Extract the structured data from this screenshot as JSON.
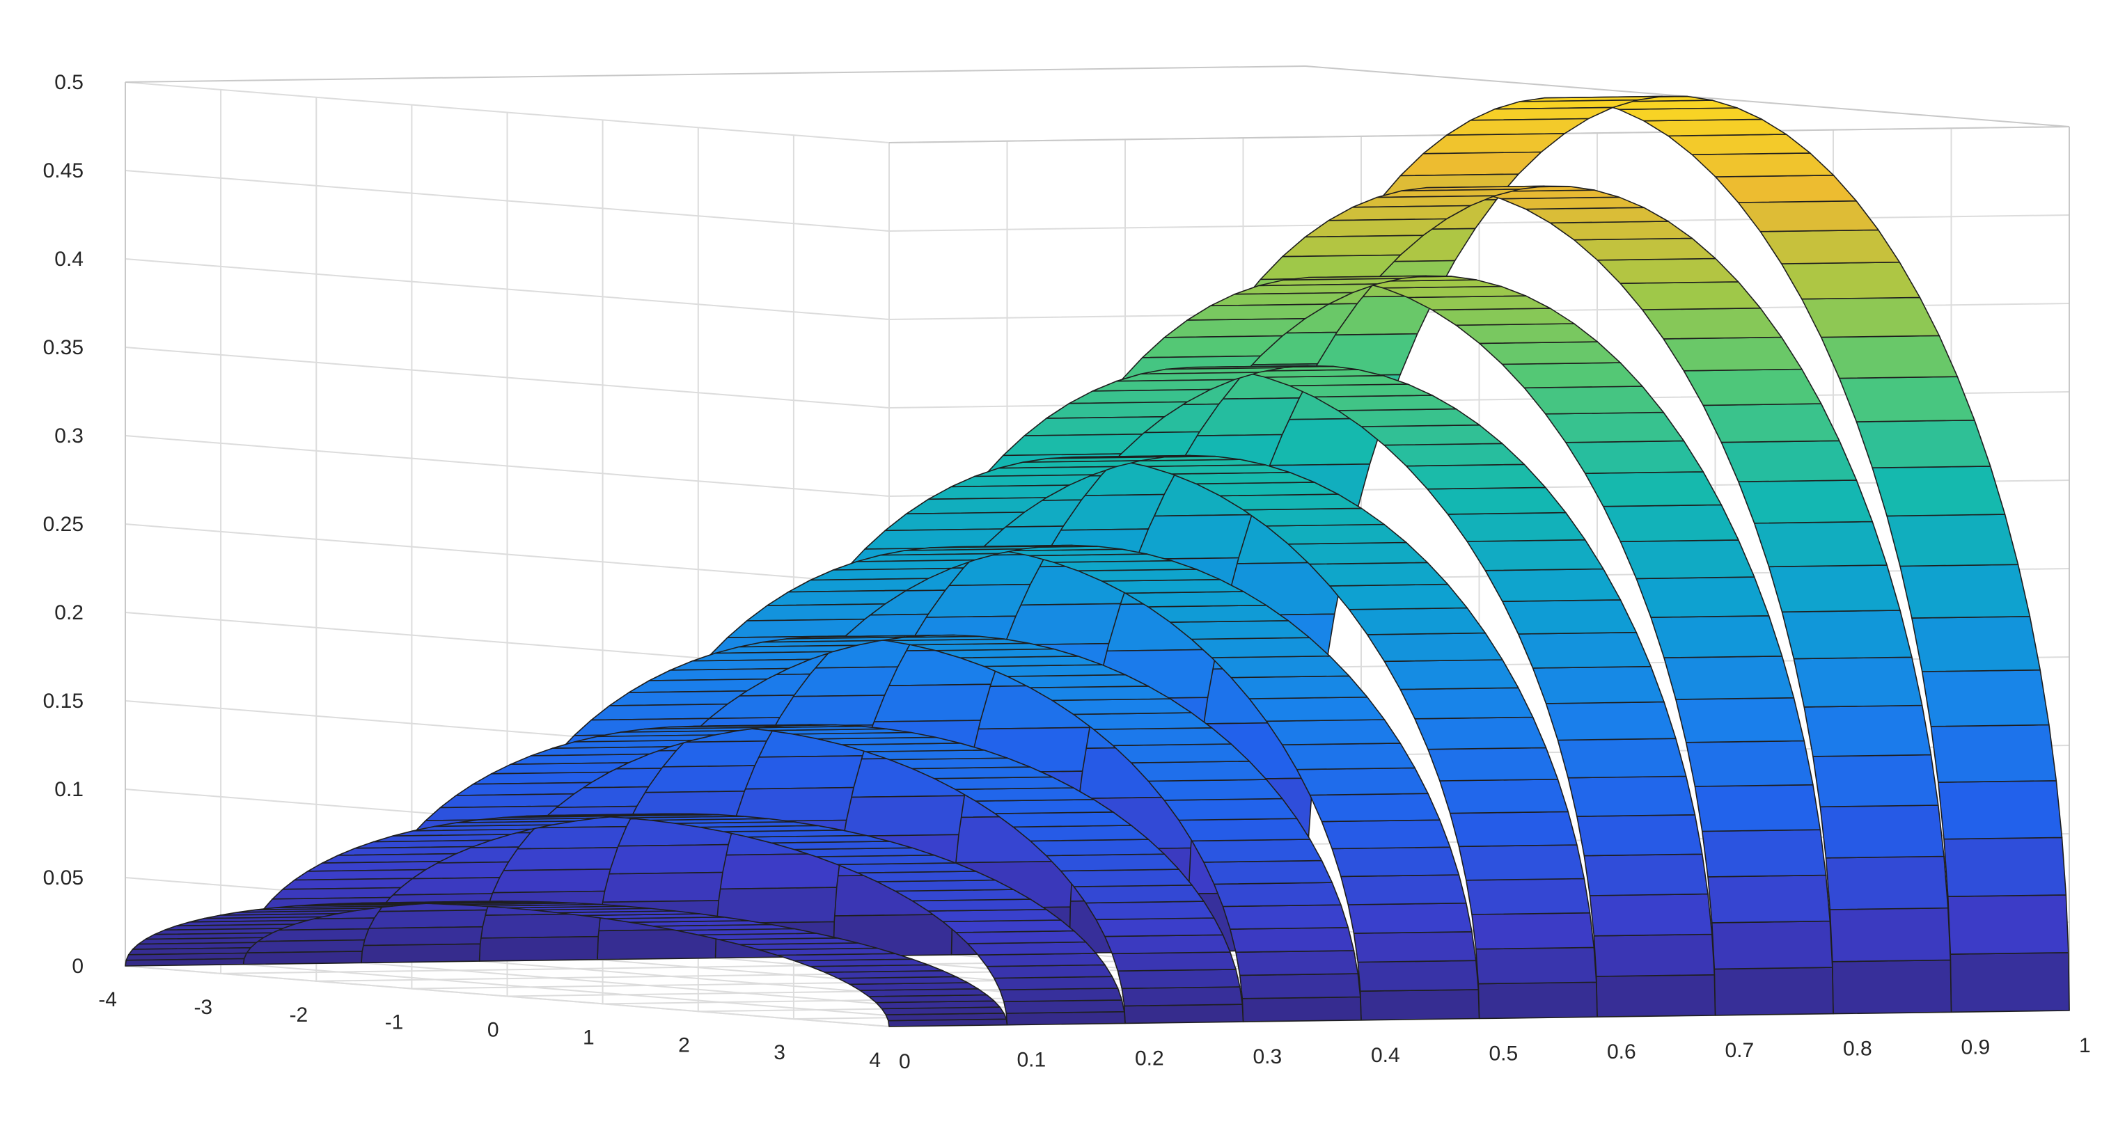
{
  "chart_data": {
    "type": "surface",
    "title": "",
    "xlabel": "",
    "ylabel": "",
    "zlabel": "",
    "grid": true,
    "colormap": "parula",
    "x_range": [
      -4,
      4
    ],
    "y_range": [
      0,
      1
    ],
    "z_range": [
      0,
      0.5
    ],
    "x_ticks": [
      "-4",
      "-3",
      "-2",
      "-1",
      "0",
      "1",
      "2",
      "3",
      "4"
    ],
    "y_ticks": [
      "0",
      "0.1",
      "0.2",
      "0.3",
      "0.4",
      "0.5",
      "0.6",
      "0.7",
      "0.8",
      "0.9",
      "1"
    ],
    "z_ticks": [
      "0",
      "0.05",
      "0.1",
      "0.15",
      "0.2",
      "0.25",
      "0.3",
      "0.35",
      "0.4",
      "0.45",
      "0.5"
    ],
    "strips": [
      {
        "y": 0.1,
        "peak": 0.05
      },
      {
        "y": 0.2,
        "peak": 0.1
      },
      {
        "y": 0.3,
        "peak": 0.15
      },
      {
        "y": 0.4,
        "peak": 0.2
      },
      {
        "y": 0.5,
        "peak": 0.25
      },
      {
        "y": 0.6,
        "peak": 0.3
      },
      {
        "y": 0.7,
        "peak": 0.35
      },
      {
        "y": 0.8,
        "peak": 0.4
      },
      {
        "y": 0.9,
        "peak": 0.45
      },
      {
        "y": 1.0,
        "peak": 0.5
      }
    ],
    "strip_width_y": 0.1,
    "series_shape": "semicircular arch centered at x = 0 with radius 4"
  }
}
